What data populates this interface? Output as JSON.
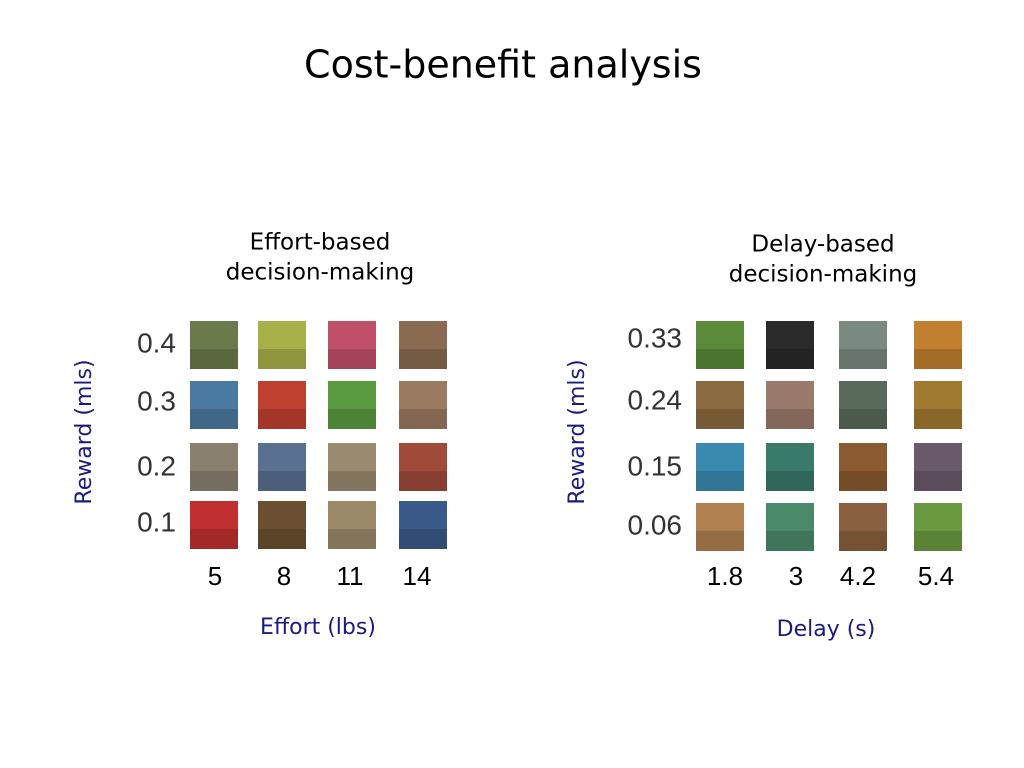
{
  "title": "Cost-benefit analysis",
  "panels": [
    {
      "title_lines": [
        "Effort-based",
        "decision-making"
      ],
      "y_label": "Reward (mls)",
      "y_values": [
        0.4,
        0.3,
        0.2,
        0.1
      ],
      "x_values": [
        5,
        8,
        11,
        14
      ],
      "x_label": "Effort (lbs)"
    },
    {
      "title_lines": [
        "Delay-based",
        "decision-making"
      ],
      "y_label": "Reward (mls)",
      "y_values": [
        0.33,
        0.24,
        0.15,
        0.06
      ],
      "x_values": [
        1.8,
        3,
        4.2,
        5.4
      ],
      "x_label": "Delay (s)"
    }
  ]
}
